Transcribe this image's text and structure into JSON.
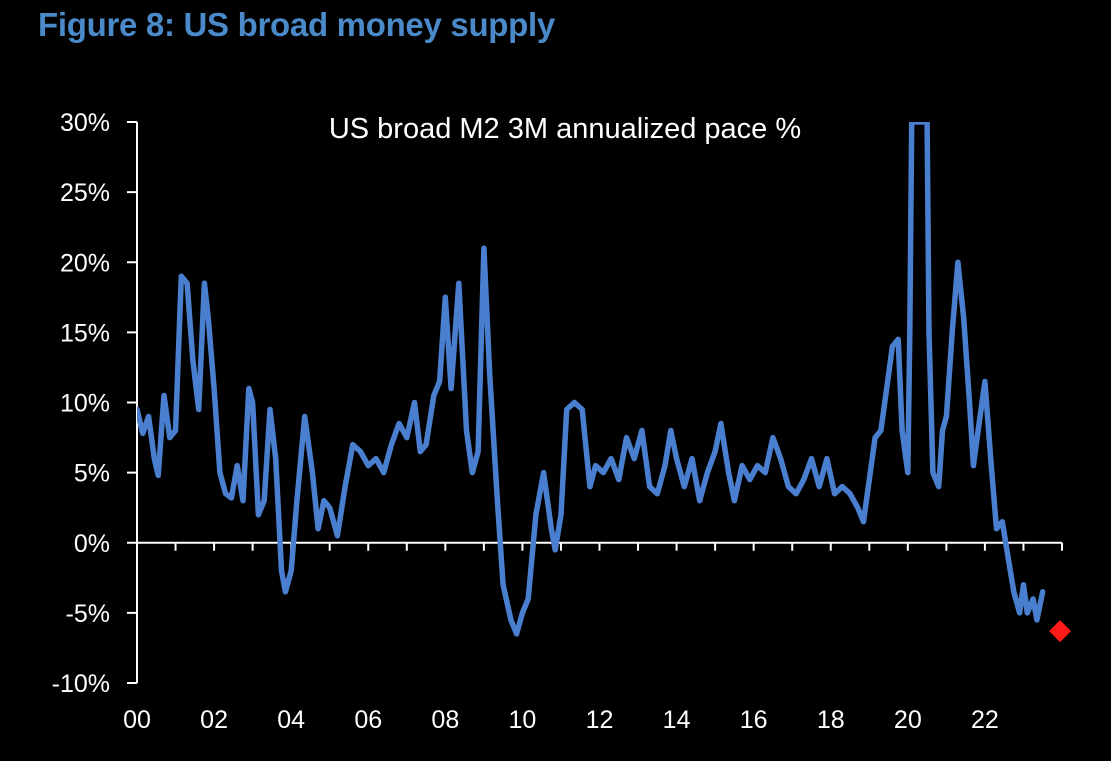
{
  "figure_title": "Figure 8: US broad money supply",
  "colors": {
    "background": "#000000",
    "title": "#4a8ac9",
    "line": "#4a7fd0",
    "axis": "#ffffff",
    "marker": "#ff1a1a"
  },
  "chart_data": {
    "type": "line",
    "title": "US broad M2 3M annualized pace %",
    "xlabel": "",
    "ylabel": "",
    "xlim": [
      2000,
      2024
    ],
    "ylim": [
      -10,
      30
    ],
    "x_ticks": [
      "00",
      "02",
      "04",
      "06",
      "08",
      "10",
      "12",
      "14",
      "16",
      "18",
      "20",
      "22"
    ],
    "y_ticks": [
      "30%",
      "25%",
      "20%",
      "15%",
      "10%",
      "5%",
      "0%",
      "-5%",
      "-10%"
    ],
    "series": [
      {
        "name": "US broad M2 3M annualized pace %",
        "points": [
          [
            2000.0,
            9.5
          ],
          [
            2000.15,
            7.8
          ],
          [
            2000.3,
            9.0
          ],
          [
            2000.45,
            6.0
          ],
          [
            2000.55,
            4.8
          ],
          [
            2000.7,
            10.5
          ],
          [
            2000.85,
            7.5
          ],
          [
            2001.0,
            8.0
          ],
          [
            2001.15,
            19.0
          ],
          [
            2001.3,
            18.5
          ],
          [
            2001.45,
            13.0
          ],
          [
            2001.6,
            9.5
          ],
          [
            2001.75,
            18.5
          ],
          [
            2001.85,
            16.0
          ],
          [
            2002.0,
            11.0
          ],
          [
            2002.15,
            5.0
          ],
          [
            2002.3,
            3.5
          ],
          [
            2002.45,
            3.2
          ],
          [
            2002.6,
            5.5
          ],
          [
            2002.75,
            3.0
          ],
          [
            2002.9,
            11.0
          ],
          [
            2003.0,
            10.0
          ],
          [
            2003.15,
            2.0
          ],
          [
            2003.3,
            3.0
          ],
          [
            2003.45,
            9.5
          ],
          [
            2003.6,
            6.0
          ],
          [
            2003.75,
            -2.0
          ],
          [
            2003.85,
            -3.5
          ],
          [
            2004.0,
            -2.0
          ],
          [
            2004.15,
            3.0
          ],
          [
            2004.35,
            9.0
          ],
          [
            2004.55,
            5.0
          ],
          [
            2004.7,
            1.0
          ],
          [
            2004.85,
            3.0
          ],
          [
            2005.0,
            2.5
          ],
          [
            2005.2,
            0.5
          ],
          [
            2005.4,
            4.0
          ],
          [
            2005.6,
            7.0
          ],
          [
            2005.8,
            6.5
          ],
          [
            2006.0,
            5.5
          ],
          [
            2006.2,
            6.0
          ],
          [
            2006.4,
            5.0
          ],
          [
            2006.6,
            7.0
          ],
          [
            2006.8,
            8.5
          ],
          [
            2007.0,
            7.5
          ],
          [
            2007.2,
            10.0
          ],
          [
            2007.35,
            6.5
          ],
          [
            2007.5,
            7.0
          ],
          [
            2007.7,
            10.5
          ],
          [
            2007.85,
            11.5
          ],
          [
            2008.0,
            17.5
          ],
          [
            2008.15,
            11.0
          ],
          [
            2008.35,
            18.5
          ],
          [
            2008.55,
            8.0
          ],
          [
            2008.7,
            5.0
          ],
          [
            2008.85,
            6.5
          ],
          [
            2009.0,
            21.0
          ],
          [
            2009.15,
            12.0
          ],
          [
            2009.35,
            3.0
          ],
          [
            2009.5,
            -3.0
          ],
          [
            2009.7,
            -5.5
          ],
          [
            2009.85,
            -6.5
          ],
          [
            2010.0,
            -5.0
          ],
          [
            2010.15,
            -4.0
          ],
          [
            2010.35,
            2.0
          ],
          [
            2010.55,
            5.0
          ],
          [
            2010.75,
            1.0
          ],
          [
            2010.85,
            -0.5
          ],
          [
            2011.0,
            2.0
          ],
          [
            2011.15,
            9.5
          ],
          [
            2011.35,
            10.0
          ],
          [
            2011.55,
            9.5
          ],
          [
            2011.75,
            4.0
          ],
          [
            2011.9,
            5.5
          ],
          [
            2012.1,
            5.0
          ],
          [
            2012.3,
            6.0
          ],
          [
            2012.5,
            4.5
          ],
          [
            2012.7,
            7.5
          ],
          [
            2012.9,
            6.0
          ],
          [
            2013.1,
            8.0
          ],
          [
            2013.3,
            4.0
          ],
          [
            2013.5,
            3.5
          ],
          [
            2013.7,
            5.5
          ],
          [
            2013.85,
            8.0
          ],
          [
            2014.0,
            6.0
          ],
          [
            2014.2,
            4.0
          ],
          [
            2014.4,
            6.0
          ],
          [
            2014.6,
            3.0
          ],
          [
            2014.8,
            5.0
          ],
          [
            2015.0,
            6.5
          ],
          [
            2015.15,
            8.5
          ],
          [
            2015.35,
            5.0
          ],
          [
            2015.5,
            3.0
          ],
          [
            2015.7,
            5.5
          ],
          [
            2015.9,
            4.5
          ],
          [
            2016.1,
            5.5
          ],
          [
            2016.3,
            5.0
          ],
          [
            2016.5,
            7.5
          ],
          [
            2016.7,
            6.0
          ],
          [
            2016.9,
            4.0
          ],
          [
            2017.1,
            3.5
          ],
          [
            2017.3,
            4.5
          ],
          [
            2017.5,
            6.0
          ],
          [
            2017.7,
            4.0
          ],
          [
            2017.9,
            6.0
          ],
          [
            2018.1,
            3.5
          ],
          [
            2018.3,
            4.0
          ],
          [
            2018.5,
            3.5
          ],
          [
            2018.7,
            2.5
          ],
          [
            2018.85,
            1.5
          ],
          [
            2019.0,
            4.5
          ],
          [
            2019.15,
            7.5
          ],
          [
            2019.3,
            8.0
          ],
          [
            2019.5,
            12.0
          ],
          [
            2019.6,
            14.0
          ],
          [
            2019.75,
            14.5
          ],
          [
            2019.85,
            8.0
          ],
          [
            2020.0,
            5.0
          ],
          [
            2020.05,
            15.0
          ],
          [
            2020.1,
            30.0
          ],
          [
            2020.25,
            30.0
          ],
          [
            2020.35,
            30.0
          ],
          [
            2020.5,
            30.0
          ],
          [
            2020.55,
            15.0
          ],
          [
            2020.65,
            5.0
          ],
          [
            2020.8,
            4.0
          ],
          [
            2020.9,
            8.0
          ],
          [
            2021.0,
            9.0
          ],
          [
            2021.15,
            15.0
          ],
          [
            2021.3,
            20.0
          ],
          [
            2021.45,
            16.0
          ],
          [
            2021.6,
            10.0
          ],
          [
            2021.7,
            5.5
          ],
          [
            2021.85,
            8.5
          ],
          [
            2022.0,
            11.5
          ],
          [
            2022.15,
            6.0
          ],
          [
            2022.3,
            1.0
          ],
          [
            2022.45,
            1.5
          ],
          [
            2022.6,
            -1.0
          ],
          [
            2022.75,
            -3.5
          ],
          [
            2022.9,
            -5.0
          ],
          [
            2023.0,
            -3.0
          ],
          [
            2023.1,
            -5.0
          ],
          [
            2023.25,
            -4.0
          ],
          [
            2023.35,
            -5.5
          ],
          [
            2023.5,
            -3.5
          ]
        ]
      }
    ],
    "highlight_point": {
      "name": "forecast marker",
      "x": 2023.95,
      "y": -6.3
    }
  }
}
